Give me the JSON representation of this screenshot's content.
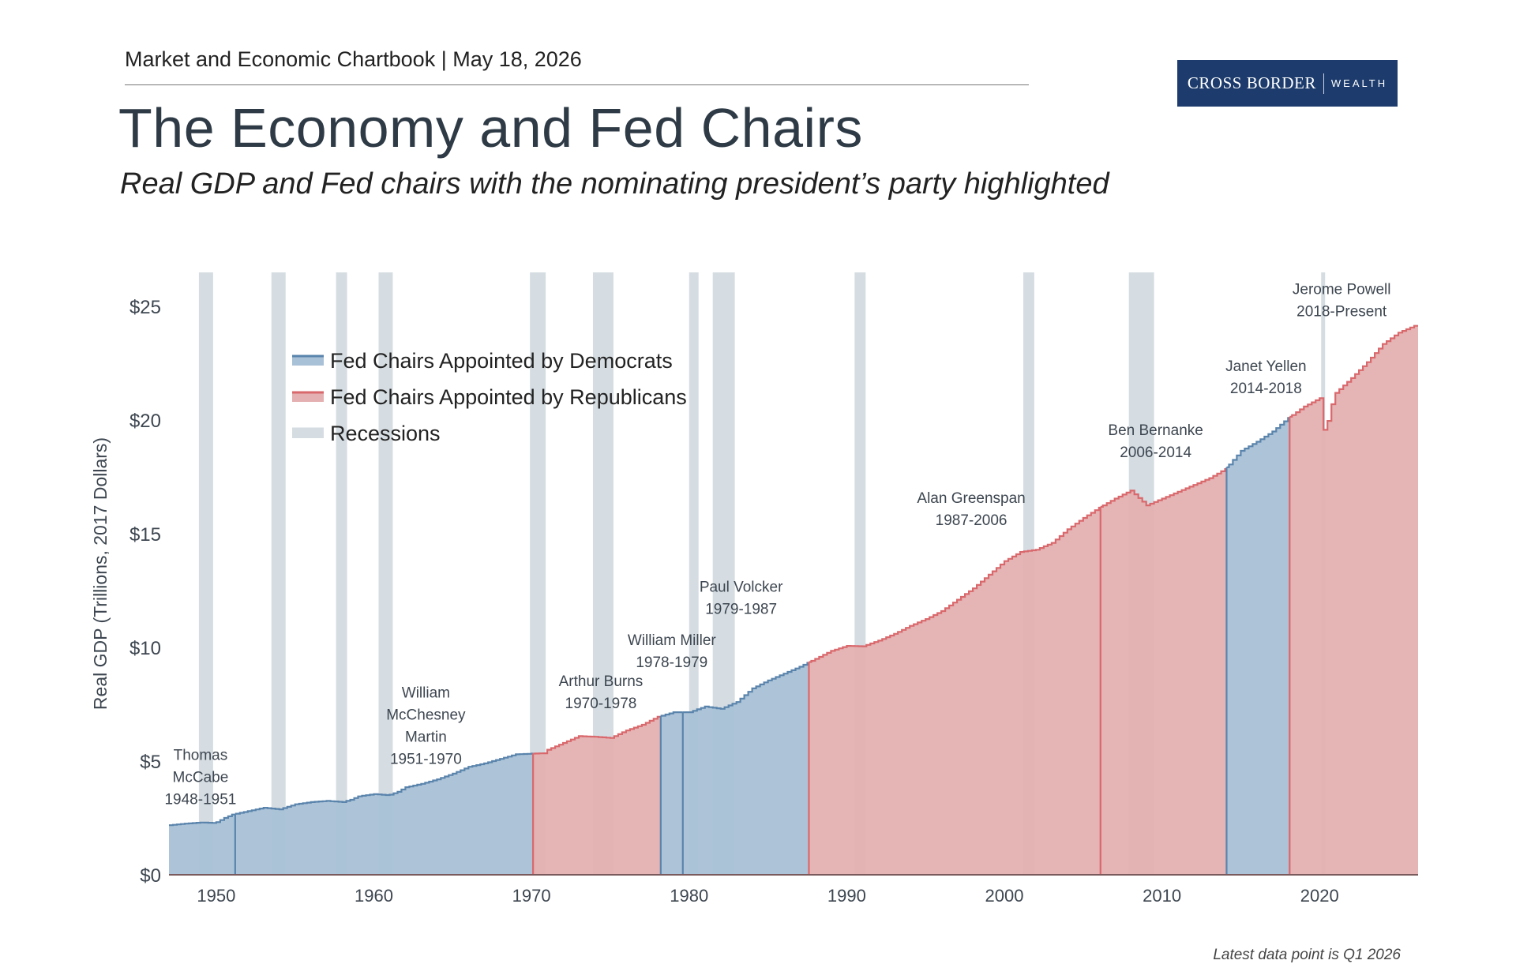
{
  "header": {
    "chartbook": "Market and Economic Chartbook | May 18, 2026",
    "title": "The Economy and Fed Chairs",
    "subtitle": "Real GDP and Fed chairs with the nominating president’s party highlighted"
  },
  "logo": {
    "brand": "CROSS BORDER",
    "suffix": "WEALTH"
  },
  "footnote": "Latest data point is Q1 2026",
  "colors": {
    "democrat_fill": "#a9c1d6",
    "democrat_line": "#5a84ac",
    "republican_fill": "#e4b0b1",
    "republican_line": "#d9686c",
    "recession": "#d5dde2"
  },
  "chart_data": {
    "type": "area",
    "title": "",
    "xlabel": "",
    "ylabel": "Real GDP (Trillions, 2017 Dollars)",
    "xlim": [
      1947,
      2026.25
    ],
    "ylim": [
      0,
      26.5
    ],
    "x_ticks": [
      1950,
      1960,
      1970,
      1980,
      1990,
      2000,
      2010,
      2020
    ],
    "x_tick_labels": [
      "1950",
      "1960",
      "1970",
      "1980",
      "1990",
      "2000",
      "2010",
      "2020"
    ],
    "y_ticks": [
      0,
      5,
      10,
      15,
      20,
      25
    ],
    "y_tick_labels": [
      "$0",
      "$5",
      "$10",
      "$15",
      "$20",
      "$25"
    ],
    "grid": false,
    "legend_position": "top-left",
    "legend": [
      {
        "label": "Fed Chairs Appointed by Democrats",
        "key": "democrat"
      },
      {
        "label": "Fed Chairs Appointed by Republicans",
        "key": "republican"
      },
      {
        "label": "Recessions",
        "key": "recession"
      }
    ],
    "gdp_series": {
      "x": [
        1947,
        1948,
        1949,
        1949.9,
        1950.5,
        1951,
        1952,
        1953,
        1954,
        1955,
        1956,
        1957,
        1958,
        1958.5,
        1959,
        1960,
        1960.9,
        1961.5,
        1962,
        1963,
        1964,
        1965,
        1966,
        1967,
        1968,
        1969,
        1970,
        1970.9,
        1971,
        1972,
        1973,
        1974,
        1975,
        1976,
        1977,
        1978,
        1979,
        1980,
        1980.5,
        1981,
        1982,
        1983,
        1984,
        1985,
        1986,
        1987,
        1988,
        1989,
        1990,
        1991,
        1992,
        1993,
        1994,
        1995,
        1996,
        1997,
        1998,
        1999,
        2000,
        2001,
        2002,
        2003,
        2004,
        2005,
        2006,
        2007,
        2008,
        2009,
        2010,
        2011,
        2012,
        2013,
        2014,
        2015,
        2016,
        2017,
        2018,
        2019,
        2020.1,
        2020.3,
        2020.6,
        2021,
        2022,
        2023,
        2024,
        2025,
        2026,
        2026.25
      ],
      "y": [
        2.18,
        2.25,
        2.3,
        2.28,
        2.5,
        2.65,
        2.8,
        2.95,
        2.88,
        3.1,
        3.2,
        3.25,
        3.2,
        3.3,
        3.45,
        3.55,
        3.5,
        3.65,
        3.85,
        4.0,
        4.2,
        4.45,
        4.75,
        4.9,
        5.1,
        5.3,
        5.33,
        5.35,
        5.5,
        5.8,
        6.1,
        6.07,
        6.02,
        6.35,
        6.6,
        6.95,
        7.15,
        7.15,
        7.28,
        7.4,
        7.3,
        7.6,
        8.2,
        8.55,
        8.85,
        9.15,
        9.5,
        9.85,
        10.07,
        10.05,
        10.3,
        10.6,
        10.95,
        11.25,
        11.6,
        12.1,
        12.6,
        13.2,
        13.8,
        14.2,
        14.3,
        14.6,
        15.2,
        15.7,
        16.15,
        16.55,
        16.9,
        16.25,
        16.55,
        16.85,
        17.15,
        17.45,
        17.85,
        18.65,
        19.05,
        19.5,
        20.1,
        20.6,
        21.0,
        19.1,
        20.4,
        21.2,
        21.85,
        22.55,
        23.35,
        23.85,
        24.15,
        24.2
      ]
    },
    "fed_chairs": [
      {
        "name": "Thomas McCabe",
        "label_lines": [
          "Thomas",
          "McCabe",
          "1948-1951"
        ],
        "start": 1947,
        "end": 1951.2,
        "party": "democrat",
        "label_x": 1949.0,
        "label_y": 5.05
      },
      {
        "name": "William McChesney Martin",
        "label_lines": [
          "William",
          "McChesney",
          "Martin",
          "1951-1970"
        ],
        "start": 1951.2,
        "end": 1970.1,
        "party": "democrat",
        "label_x": 1963.3,
        "label_y": 7.8
      },
      {
        "name": "Arthur Burns",
        "label_lines": [
          "Arthur Burns",
          "1970-1978"
        ],
        "start": 1970.1,
        "end": 1978.2,
        "party": "republican",
        "label_x": 1974.4,
        "label_y": 8.3
      },
      {
        "name": "William Miller",
        "label_lines": [
          "William Miller",
          "1978-1979"
        ],
        "start": 1978.2,
        "end": 1979.6,
        "party": "democrat",
        "label_x": 1978.9,
        "label_y": 10.1
      },
      {
        "name": "Paul Volcker",
        "label_lines": [
          "Paul Volcker",
          "1979-1987"
        ],
        "start": 1979.6,
        "end": 1987.6,
        "party": "democrat",
        "label_x": 1983.3,
        "label_y": 12.45
      },
      {
        "name": "Alan Greenspan",
        "label_lines": [
          "Alan Greenspan",
          "1987-2006"
        ],
        "start": 1987.6,
        "end": 2006.1,
        "party": "republican",
        "label_x": 1997.9,
        "label_y": 16.35
      },
      {
        "name": "Ben Bernanke",
        "label_lines": [
          "Ben Bernanke",
          "2006-2014"
        ],
        "start": 2006.1,
        "end": 2014.1,
        "party": "republican",
        "label_x": 2009.6,
        "label_y": 19.35
      },
      {
        "name": "Janet Yellen",
        "label_lines": [
          "Janet Yellen",
          "2014-2018"
        ],
        "start": 2014.1,
        "end": 2018.1,
        "party": "democrat",
        "label_x": 2016.6,
        "label_y": 22.15
      },
      {
        "name": "Jerome Powell",
        "label_lines": [
          "Jerome Powell",
          "2018-Present"
        ],
        "start": 2018.1,
        "end": 2026.25,
        "party": "republican",
        "label_x": 2021.4,
        "label_y": 25.55
      }
    ],
    "recessions": [
      [
        1948.9,
        1949.8
      ],
      [
        1953.5,
        1954.4
      ],
      [
        1957.6,
        1958.3
      ],
      [
        1960.3,
        1961.2
      ],
      [
        1969.9,
        1970.9
      ],
      [
        1973.9,
        1975.2
      ],
      [
        1980.0,
        1980.6
      ],
      [
        1981.5,
        1982.9
      ],
      [
        1990.5,
        1991.2
      ],
      [
        2001.2,
        2001.9
      ],
      [
        2007.9,
        2009.5
      ],
      [
        2020.1,
        2020.35
      ]
    ]
  }
}
